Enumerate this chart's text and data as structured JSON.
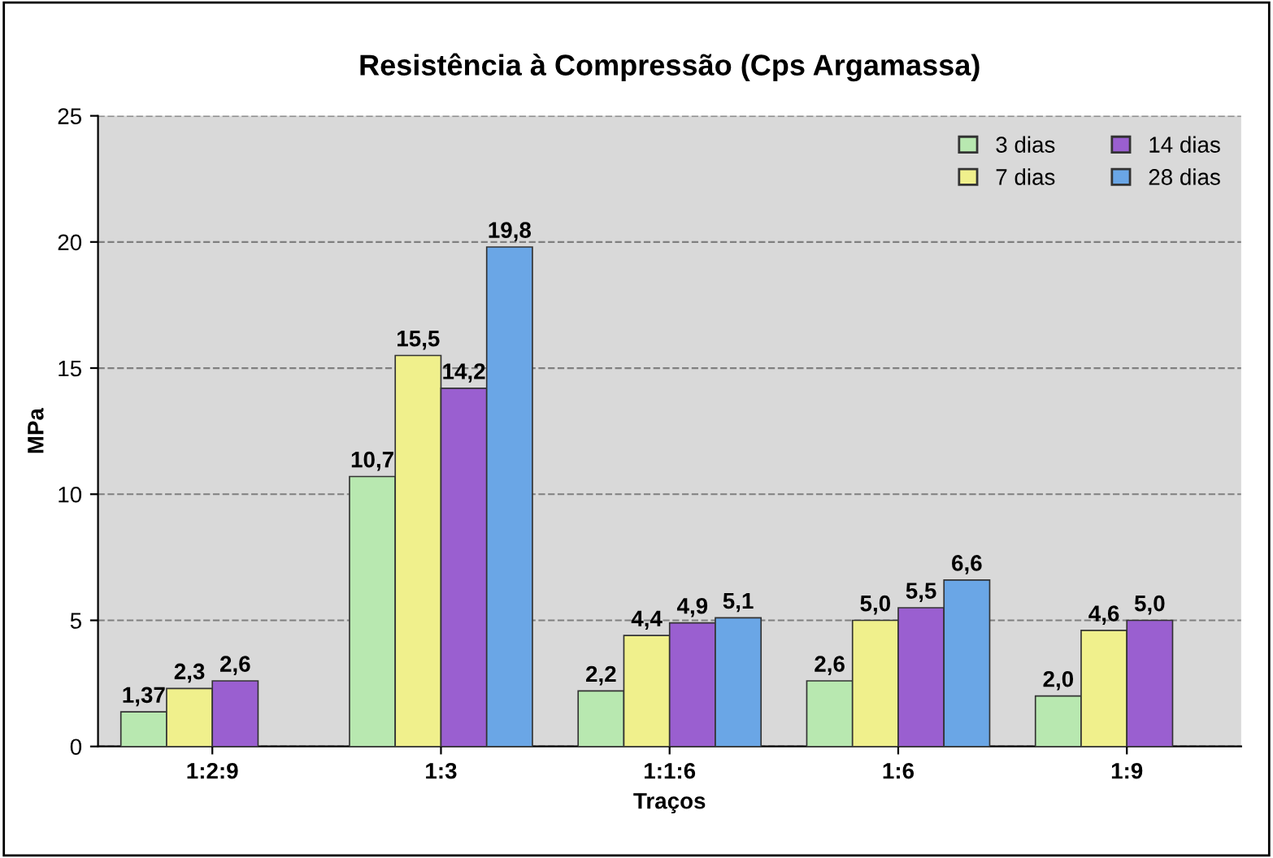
{
  "chart_data": {
    "type": "bar",
    "title": "Resistência à Compressão (Cps Argamassa)",
    "xlabel": "Traços",
    "ylabel": "MPa",
    "categories": [
      "1:2:9",
      "1:3",
      "1:1:6",
      "1:6",
      "1:9"
    ],
    "series": [
      {
        "name": "3 dias",
        "color": "#b8e8b0",
        "values": [
          1.37,
          10.7,
          2.2,
          2.6,
          2.0
        ],
        "value_labels": [
          "1,37",
          "10,7",
          "2,2",
          "2,6",
          "2,0"
        ]
      },
      {
        "name": "7 dias",
        "color": "#f0f08c",
        "values": [
          2.3,
          15.5,
          4.4,
          5.0,
          4.6
        ],
        "value_labels": [
          "2,3",
          "15,5",
          "4,4",
          "5,0",
          "4,6"
        ]
      },
      {
        "name": "14 dias",
        "color": "#9a5fd0",
        "values": [
          2.6,
          14.2,
          4.9,
          5.5,
          5.0
        ],
        "value_labels": [
          "2,6",
          "14,2",
          "4,9",
          "5,5",
          "5,0"
        ]
      },
      {
        "name": "28 dias",
        "color": "#6aa6e6",
        "values": [
          null,
          19.8,
          5.1,
          6.6,
          null
        ],
        "value_labels": [
          null,
          "19,8",
          "5,1",
          "6,6",
          null
        ]
      }
    ],
    "ylim": [
      0,
      25
    ],
    "yticks": [
      0,
      5,
      10,
      15,
      20,
      25
    ],
    "grid": "y",
    "legend": "top right"
  }
}
